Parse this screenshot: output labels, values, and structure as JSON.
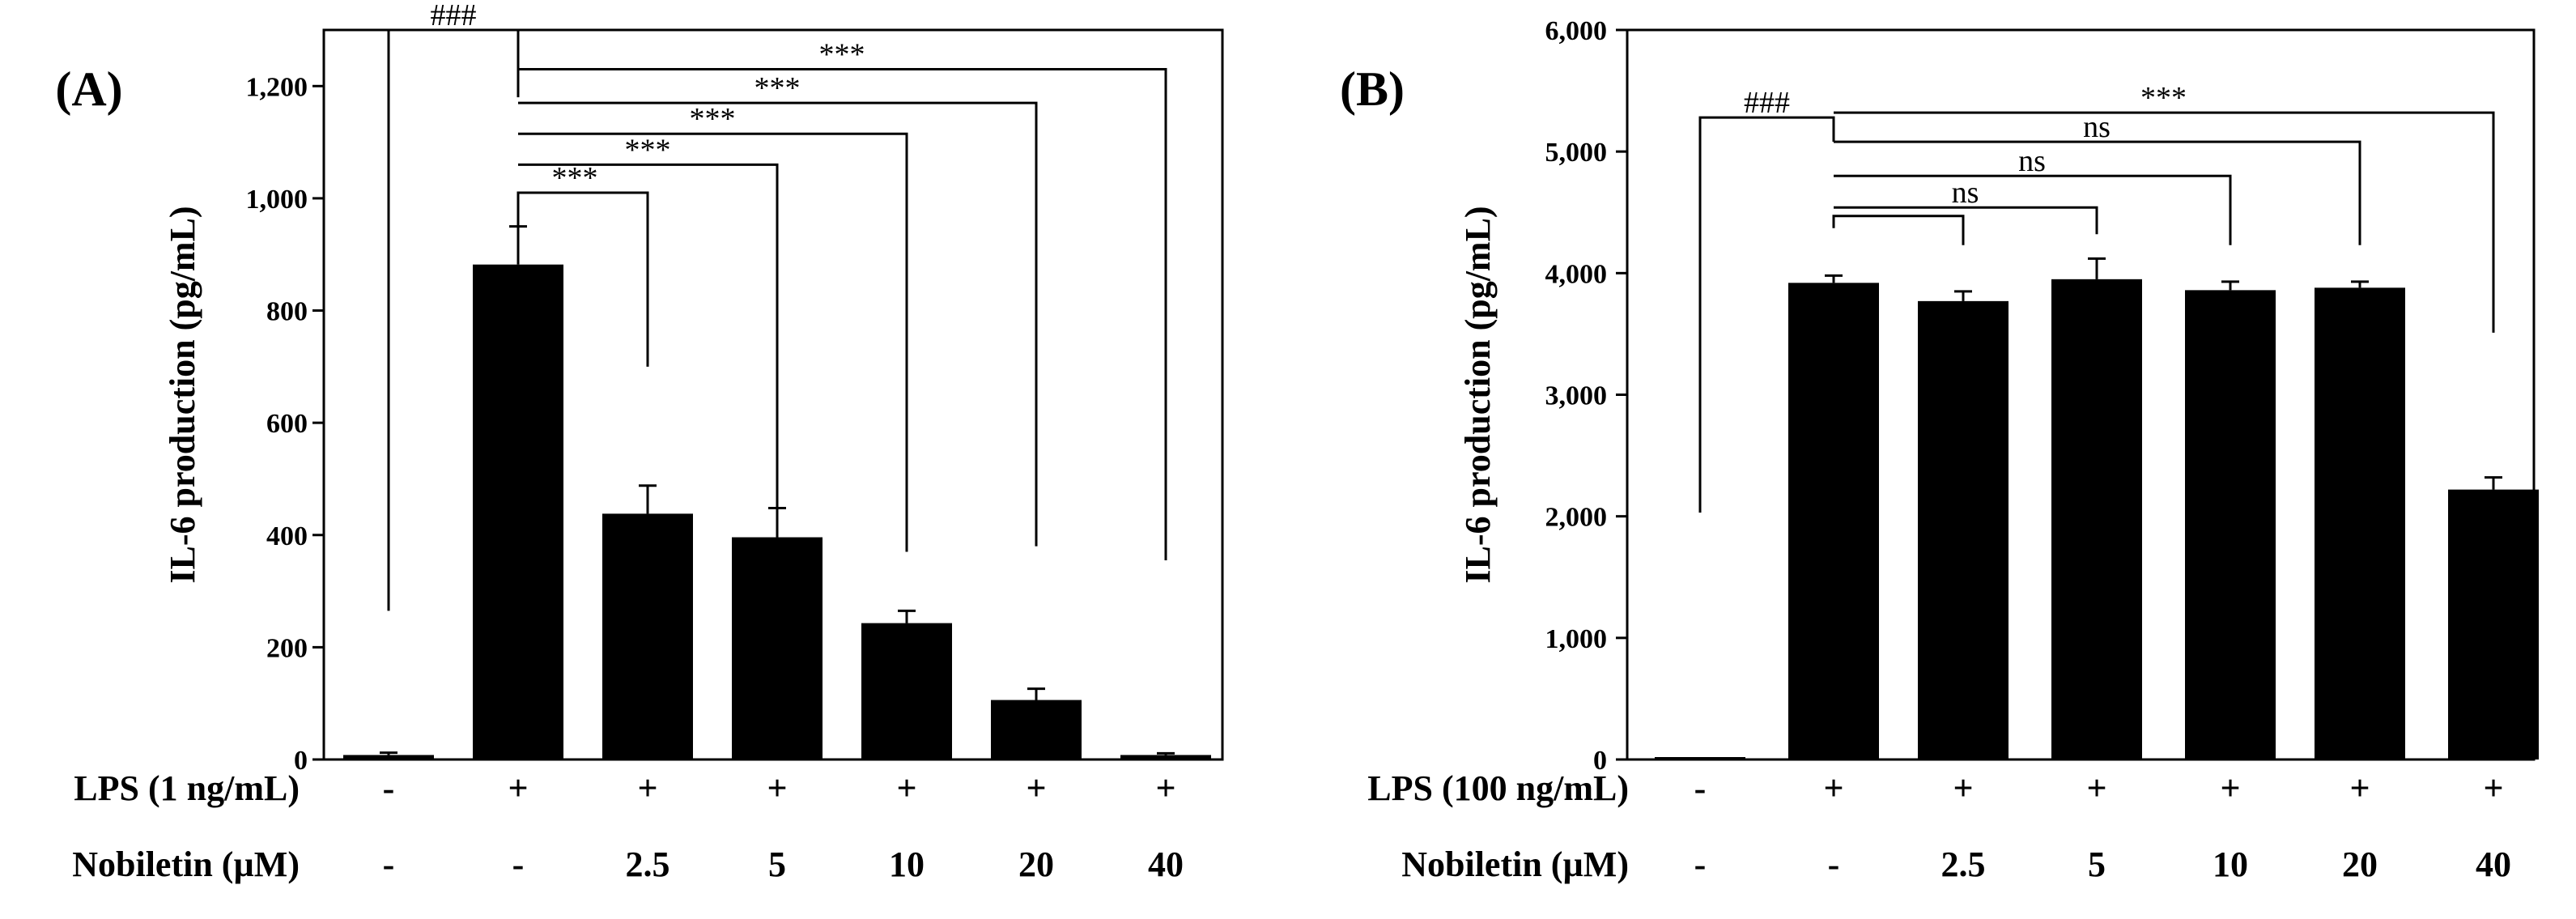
{
  "chart_data": [
    {
      "type": "bar",
      "panel_label": "(A)",
      "ylabel": "IL-6 production (pg/mL)",
      "ylim": [
        0,
        1300
      ],
      "yticks": [
        0,
        200,
        400,
        600,
        800,
        1000,
        1200
      ],
      "ytick_labels": [
        "0",
        "200",
        "400",
        "600",
        "800",
        "1,000",
        "1,200"
      ],
      "values": [
        8,
        882,
        438,
        396,
        243,
        106,
        8
      ],
      "errors": [
        4,
        68,
        50,
        52,
        22,
        20,
        3
      ],
      "row_labels": [
        "LPS (1 ng/mL)",
        "Nobiletin (µM)"
      ],
      "lps": [
        "-",
        "+",
        "+",
        "+",
        "+",
        "+",
        "+"
      ],
      "nobiletin": [
        "-",
        "-",
        "2.5",
        "5",
        "10",
        "20",
        "40"
      ],
      "brackets": [
        {
          "from": 0,
          "to": 1,
          "label": "###",
          "level": 1300,
          "foot_left": 265,
          "foot_right": 1180
        },
        {
          "from": 1,
          "to": 2,
          "label": "***",
          "level": 1010,
          "foot_left": 950,
          "foot_right": 700
        },
        {
          "from": 1,
          "to": 3,
          "label": "***",
          "level": 1060,
          "foot_left": 1060,
          "foot_right": 400
        },
        {
          "from": 1,
          "to": 4,
          "label": "***",
          "level": 1115,
          "foot_left": 1115,
          "foot_right": 370
        },
        {
          "from": 1,
          "to": 5,
          "label": "***",
          "level": 1170,
          "foot_left": 1170,
          "foot_right": 380
        },
        {
          "from": 1,
          "to": 6,
          "label": "***",
          "level": 1230,
          "foot_left": 1230,
          "foot_right": 355
        }
      ]
    },
    {
      "type": "bar",
      "panel_label": "(B)",
      "ylabel": "IL-6 production (pg/mL)",
      "ylim": [
        0,
        6000
      ],
      "yticks": [
        0,
        1000,
        2000,
        3000,
        4000,
        5000,
        6000
      ],
      "ytick_labels": [
        "0",
        "1,000",
        "2,000",
        "3,000",
        "4,000",
        "5,000",
        "6,000"
      ],
      "values": [
        5,
        3920,
        3770,
        3950,
        3860,
        3880,
        2220
      ],
      "errors": [
        5,
        60,
        80,
        170,
        70,
        50,
        100
      ],
      "row_labels": [
        "LPS (100 ng/mL)",
        "Nobiletin (µM)"
      ],
      "lps": [
        "-",
        "+",
        "+",
        "+",
        "+",
        "+",
        "+"
      ],
      "nobiletin": [
        "-",
        "-",
        "2.5",
        "5",
        "10",
        "20",
        "40"
      ],
      "brackets": [
        {
          "from": 0,
          "to": 1,
          "label": "###",
          "level": 5280,
          "foot_left": 2030,
          "foot_right": 5080
        },
        {
          "from": 1,
          "to": 2,
          "label": "",
          "level": 4470,
          "foot_left": 4370,
          "foot_right": 4230
        },
        {
          "from": 1,
          "to": 3,
          "label": "ns",
          "level": 4540,
          "foot_left": 4540,
          "foot_right": 4320
        },
        {
          "from": 1,
          "to": 4,
          "label": "ns",
          "level": 4800,
          "foot_left": 4800,
          "foot_right": 4230
        },
        {
          "from": 1,
          "to": 5,
          "label": "ns",
          "level": 5080,
          "foot_left": 5080,
          "foot_right": 4230
        },
        {
          "from": 1,
          "to": 6,
          "label": "***",
          "level": 5320,
          "foot_left": 5320,
          "foot_right": 3510
        }
      ]
    }
  ]
}
